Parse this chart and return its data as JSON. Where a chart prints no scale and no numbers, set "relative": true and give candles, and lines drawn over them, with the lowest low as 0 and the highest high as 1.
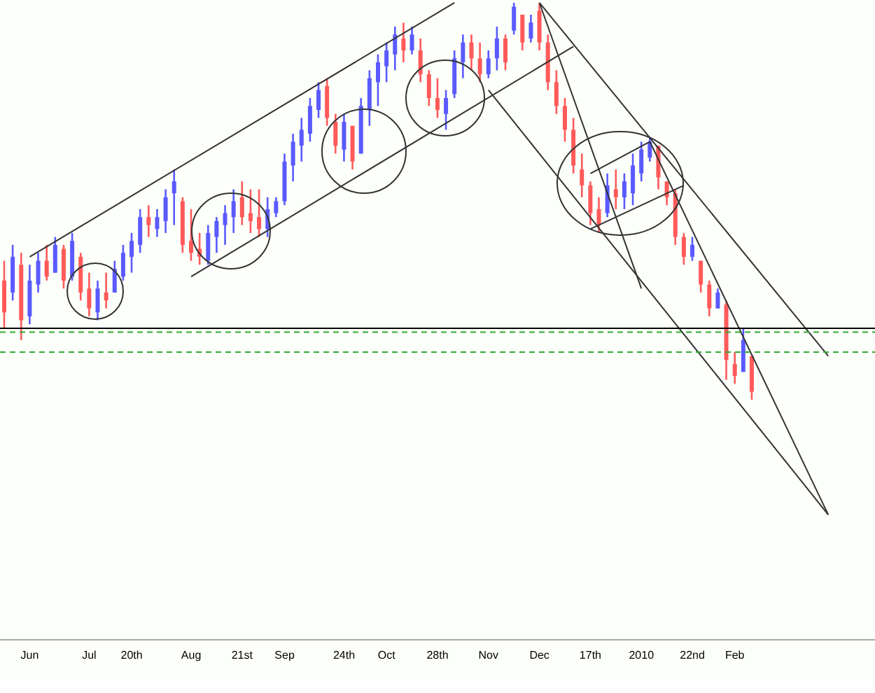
{
  "chart_data": {
    "type": "candlestick",
    "relative": true,
    "categories": [
      null,
      null,
      null,
      "Jun",
      null,
      null,
      null,
      null,
      null,
      null,
      "Jul",
      null,
      null,
      null,
      null,
      "20th",
      null,
      null,
      null,
      null,
      null,
      null,
      "Aug",
      null,
      null,
      null,
      null,
      null,
      "21st",
      null,
      null,
      null,
      null,
      "Sep",
      null,
      null,
      null,
      null,
      null,
      null,
      "24th",
      null,
      null,
      null,
      null,
      "Oct",
      null,
      null,
      null,
      null,
      null,
      "28th",
      null,
      null,
      null,
      null,
      null,
      "Nov",
      null,
      null,
      null,
      null,
      null,
      "Dec",
      null,
      null,
      null,
      null,
      null,
      "17th",
      null,
      null,
      null,
      null,
      null,
      "2010",
      null,
      null,
      null,
      null,
      null,
      "22nd",
      null,
      null,
      null,
      null,
      "Feb",
      null,
      null,
      null,
      null,
      null,
      null,
      null,
      null,
      null,
      null,
      null,
      null,
      null,
      null,
      null,
      null
    ],
    "ohlc": [
      [
        0.3,
        0.35,
        0.18,
        0.22
      ],
      [
        0.27,
        0.39,
        0.25,
        0.36
      ],
      [
        0.34,
        0.37,
        0.15,
        0.2
      ],
      [
        0.21,
        0.34,
        0.19,
        0.3
      ],
      [
        0.29,
        0.37,
        0.27,
        0.35
      ],
      [
        0.35,
        0.39,
        0.3,
        0.31
      ],
      [
        0.32,
        0.41,
        0.32,
        0.39
      ],
      [
        0.38,
        0.39,
        0.28,
        0.3
      ],
      [
        0.31,
        0.42,
        0.3,
        0.4
      ],
      [
        0.36,
        0.37,
        0.25,
        0.27
      ],
      [
        0.28,
        0.32,
        0.21,
        0.23
      ],
      [
        0.22,
        0.3,
        0.2,
        0.28
      ],
      [
        0.27,
        0.32,
        0.23,
        0.25
      ],
      [
        0.27,
        0.35,
        0.27,
        0.33
      ],
      [
        0.31,
        0.39,
        0.3,
        0.37
      ],
      [
        0.36,
        0.42,
        0.32,
        0.4
      ],
      [
        0.39,
        0.48,
        0.37,
        0.46
      ],
      [
        0.46,
        0.49,
        0.41,
        0.44
      ],
      [
        0.43,
        0.48,
        0.41,
        0.46
      ],
      [
        0.45,
        0.53,
        0.42,
        0.51
      ],
      [
        0.52,
        0.58,
        0.44,
        0.55
      ],
      [
        0.5,
        0.51,
        0.37,
        0.39
      ],
      [
        0.4,
        0.48,
        0.35,
        0.37
      ],
      [
        0.38,
        0.42,
        0.34,
        0.36
      ],
      [
        0.35,
        0.44,
        0.34,
        0.42
      ],
      [
        0.41,
        0.46,
        0.37,
        0.45
      ],
      [
        0.44,
        0.49,
        0.39,
        0.47
      ],
      [
        0.46,
        0.53,
        0.42,
        0.5
      ],
      [
        0.51,
        0.55,
        0.44,
        0.46
      ],
      [
        0.47,
        0.53,
        0.42,
        0.45
      ],
      [
        0.46,
        0.53,
        0.41,
        0.43
      ],
      [
        0.43,
        0.51,
        0.41,
        0.48
      ],
      [
        0.47,
        0.51,
        0.46,
        0.5
      ],
      [
        0.5,
        0.62,
        0.49,
        0.6
      ],
      [
        0.59,
        0.67,
        0.55,
        0.65
      ],
      [
        0.64,
        0.71,
        0.6,
        0.68
      ],
      [
        0.67,
        0.76,
        0.65,
        0.74
      ],
      [
        0.73,
        0.8,
        0.71,
        0.78
      ],
      [
        0.79,
        0.81,
        0.69,
        0.71
      ],
      [
        0.7,
        0.72,
        0.62,
        0.64
      ],
      [
        0.63,
        0.72,
        0.6,
        0.7
      ],
      [
        0.69,
        0.69,
        0.58,
        0.6
      ],
      [
        0.62,
        0.76,
        0.62,
        0.74
      ],
      [
        0.73,
        0.83,
        0.69,
        0.81
      ],
      [
        0.8,
        0.87,
        0.74,
        0.85
      ],
      [
        0.84,
        0.9,
        0.8,
        0.88
      ],
      [
        0.87,
        0.94,
        0.83,
        0.92
      ],
      [
        0.91,
        0.95,
        0.85,
        0.88
      ],
      [
        0.88,
        0.94,
        0.87,
        0.92
      ],
      [
        0.88,
        0.91,
        0.8,
        0.82
      ],
      [
        0.82,
        0.83,
        0.74,
        0.76
      ],
      [
        0.76,
        0.81,
        0.71,
        0.73
      ],
      [
        0.72,
        0.78,
        0.68,
        0.76
      ],
      [
        0.77,
        0.88,
        0.76,
        0.86
      ],
      [
        0.85,
        0.92,
        0.81,
        0.9
      ],
      [
        0.9,
        0.92,
        0.83,
        0.86
      ],
      [
        0.86,
        0.9,
        0.8,
        0.82
      ],
      [
        0.82,
        0.88,
        0.81,
        0.86
      ],
      [
        0.86,
        0.94,
        0.83,
        0.91
      ],
      [
        0.91,
        0.92,
        0.83,
        0.85
      ],
      [
        0.93,
        1.0,
        0.92,
        0.99
      ],
      [
        0.97,
        0.97,
        0.88,
        0.9
      ],
      [
        0.91,
        0.97,
        0.9,
        0.95
      ],
      [
        0.98,
        1.0,
        0.88,
        0.9
      ],
      [
        0.9,
        0.92,
        0.78,
        0.8
      ],
      [
        0.8,
        0.83,
        0.72,
        0.74
      ],
      [
        0.74,
        0.76,
        0.65,
        0.68
      ],
      [
        0.68,
        0.71,
        0.57,
        0.59
      ],
      [
        0.58,
        0.62,
        0.51,
        0.54
      ],
      [
        0.54,
        0.55,
        0.44,
        0.47
      ],
      [
        0.48,
        0.51,
        0.42,
        0.44
      ],
      [
        0.47,
        0.57,
        0.46,
        0.54
      ],
      [
        0.53,
        0.58,
        0.48,
        0.51
      ],
      [
        0.51,
        0.57,
        0.48,
        0.55
      ],
      [
        0.52,
        0.62,
        0.49,
        0.59
      ],
      [
        0.57,
        0.65,
        0.55,
        0.63
      ],
      [
        0.61,
        0.66,
        0.6,
        0.65
      ],
      [
        0.64,
        0.64,
        0.53,
        0.56
      ],
      [
        0.55,
        0.55,
        0.49,
        0.51
      ],
      [
        0.52,
        0.53,
        0.39,
        0.41
      ],
      [
        0.41,
        0.42,
        0.34,
        0.36
      ],
      [
        0.36,
        0.41,
        0.35,
        0.39
      ],
      [
        0.35,
        0.35,
        0.27,
        0.29
      ],
      [
        0.29,
        0.3,
        0.21,
        0.23
      ],
      [
        0.23,
        0.28,
        0.23,
        0.27
      ],
      [
        0.24,
        0.25,
        0.05,
        0.1
      ],
      [
        0.09,
        0.12,
        0.04,
        0.06
      ],
      [
        0.07,
        0.18,
        0.07,
        0.15
      ],
      [
        0.11,
        0.11,
        0.0,
        0.02
      ],
      null,
      null,
      null,
      null,
      null,
      null,
      null,
      null,
      null,
      null,
      null,
      null,
      null,
      null
    ],
    "colors": [
      "#ff5a5a",
      "#5a5aff",
      "#ff5a5a",
      "#5a5aff",
      "#5a5aff",
      "#ff5a5a",
      "#5a5aff",
      "#ff5a5a",
      "#5a5aff",
      "#ff5a5a",
      "#ff5a5a",
      "#5a5aff",
      "#ff5a5a",
      "#5a5aff",
      "#5a5aff",
      "#5a5aff",
      "#5a5aff",
      "#ff5a5a",
      "#5a5aff",
      "#5a5aff",
      "#5a5aff",
      "#ff5a5a",
      "#ff5a5a",
      "#ff5a5a",
      "#5a5aff",
      "#5a5aff",
      "#5a5aff",
      "#5a5aff",
      "#ff5a5a",
      "#ff5a5a",
      "#ff5a5a",
      "#5a5aff",
      "#5a5aff",
      "#5a5aff",
      "#5a5aff",
      "#5a5aff",
      "#5a5aff",
      "#5a5aff",
      "#ff5a5a",
      "#ff5a5a",
      "#5a5aff",
      "#ff5a5a",
      "#5a5aff",
      "#5a5aff",
      "#5a5aff",
      "#5a5aff",
      "#5a5aff",
      "#ff5a5a",
      "#5a5aff",
      "#ff5a5a",
      "#ff5a5a",
      "#ff5a5a",
      "#5a5aff",
      "#5a5aff",
      "#5a5aff",
      "#ff5a5a",
      "#ff5a5a",
      "#5a5aff",
      "#5a5aff",
      "#ff5a5a",
      "#5a5aff",
      "#ff5a5a",
      "#5a5aff",
      "#ff5a5a",
      "#ff5a5a",
      "#ff5a5a",
      "#ff5a5a",
      "#ff5a5a",
      "#ff5a5a",
      "#ff5a5a",
      "#ff5a5a",
      "#5a5aff",
      "#ff5a5a",
      "#5a5aff",
      "#5a5aff",
      "#5a5aff",
      "#5a5aff",
      "#ff5a5a",
      "#ff5a5a",
      "#ff5a5a",
      "#ff5a5a",
      "#5a5aff",
      "#ff5a5a",
      "#ff5a5a",
      "#5a5aff",
      "#ff5a5a",
      "#ff5a5a",
      "#5a5aff",
      "#ff5a5a",
      null,
      null,
      null,
      null,
      null,
      null,
      null,
      null,
      null,
      null,
      null,
      null,
      null,
      null
    ],
    "series": [
      {
        "type": "line",
        "color": "#333333",
        "values": [
          null,
          null,
          null,
          0.36,
          null,
          null,
          null,
          null,
          null,
          null,
          null,
          null,
          null,
          null,
          null,
          null,
          null,
          null,
          null,
          null,
          null,
          null,
          null,
          null,
          null,
          null,
          null,
          null,
          null,
          null,
          null,
          null,
          null,
          null,
          null,
          null,
          null,
          null,
          null,
          null,
          null,
          null,
          null,
          null,
          null,
          null,
          null,
          null,
          null,
          null,
          null,
          null,
          null,
          1.0,
          null,
          null,
          null,
          null,
          null,
          null,
          null,
          null,
          null,
          null,
          null,
          null,
          null,
          null,
          null,
          null,
          null,
          null,
          null,
          null,
          null,
          null,
          null,
          null,
          null,
          null,
          null,
          null,
          null,
          null,
          null,
          null,
          null,
          null,
          null,
          null,
          null,
          null,
          null,
          null,
          null,
          null,
          null,
          null,
          null,
          null,
          null,
          null,
          null
        ]
      },
      {
        "type": "line",
        "color": "#333333",
        "values": [
          null,
          null,
          null,
          null,
          null,
          null,
          null,
          null,
          null,
          null,
          null,
          null,
          null,
          null,
          null,
          null,
          null,
          null,
          null,
          null,
          null,
          null,
          0.31,
          null,
          null,
          null,
          null,
          null,
          null,
          null,
          null,
          null,
          null,
          null,
          null,
          null,
          null,
          null,
          null,
          null,
          null,
          null,
          null,
          null,
          null,
          null,
          null,
          null,
          null,
          null,
          null,
          null,
          null,
          null,
          null,
          null,
          null,
          null,
          null,
          null,
          null,
          null,
          null,
          null,
          null,
          null,
          null,
          0.89,
          null,
          null,
          null,
          null,
          null,
          null,
          null,
          null,
          null,
          null,
          null,
          null,
          null,
          null,
          null,
          null,
          null,
          null,
          null,
          null,
          null,
          null,
          null,
          null,
          null,
          null,
          null,
          null,
          null,
          null,
          null,
          null,
          null,
          null,
          null
        ]
      },
      {
        "type": "line",
        "color": "#333333",
        "values": [
          null,
          null,
          null,
          null,
          null,
          null,
          null,
          null,
          null,
          null,
          null,
          null,
          null,
          null,
          null,
          null,
          null,
          null,
          null,
          null,
          null,
          null,
          null,
          null,
          null,
          null,
          null,
          null,
          null,
          null,
          null,
          null,
          null,
          null,
          null,
          null,
          null,
          null,
          null,
          null,
          null,
          null,
          null,
          null,
          null,
          null,
          null,
          null,
          null,
          null,
          null,
          null,
          null,
          null,
          null,
          null,
          null,
          null,
          null,
          null,
          null,
          null,
          null,
          1.0,
          null,
          null,
          null,
          null,
          null,
          null,
          null,
          null,
          null,
          null,
          null,
          null,
          null,
          null,
          null,
          null,
          null,
          null,
          null,
          null,
          null,
          null,
          null,
          null,
          null,
          null,
          null,
          null,
          null,
          null,
          null,
          null,
          null,
          0.11,
          null,
          null,
          null,
          null,
          null
        ]
      },
      {
        "type": "line",
        "color": "#333333",
        "values": [
          null,
          null,
          null,
          null,
          null,
          null,
          null,
          null,
          null,
          null,
          null,
          null,
          null,
          null,
          null,
          null,
          null,
          null,
          null,
          null,
          null,
          null,
          null,
          null,
          null,
          null,
          null,
          null,
          null,
          null,
          null,
          null,
          null,
          null,
          null,
          null,
          null,
          null,
          null,
          null,
          null,
          null,
          null,
          null,
          null,
          null,
          null,
          null,
          null,
          null,
          null,
          null,
          null,
          null,
          null,
          null,
          null,
          0.78,
          null,
          null,
          null,
          null,
          null,
          null,
          null,
          null,
          null,
          null,
          null,
          null,
          null,
          null,
          null,
          null,
          null,
          null,
          null,
          null,
          null,
          null,
          null,
          null,
          null,
          null,
          null,
          null,
          null,
          null,
          null,
          null,
          null,
          null,
          null,
          null,
          null,
          null,
          null,
          -0.29,
          null,
          null,
          null,
          null,
          null
        ]
      },
      {
        "type": "line",
        "color": "#333333",
        "values": [
          null,
          null,
          null,
          null,
          null,
          null,
          null,
          null,
          null,
          null,
          null,
          null,
          null,
          null,
          null,
          null,
          null,
          null,
          null,
          null,
          null,
          null,
          null,
          null,
          null,
          null,
          null,
          null,
          null,
          null,
          null,
          null,
          null,
          null,
          null,
          null,
          null,
          null,
          null,
          null,
          null,
          null,
          null,
          null,
          null,
          null,
          null,
          null,
          null,
          null,
          null,
          null,
          null,
          null,
          null,
          null,
          null,
          null,
          null,
          null,
          null,
          null,
          null,
          1.0,
          null,
          null,
          null,
          null,
          null,
          null,
          null,
          null,
          null,
          null,
          null,
          0.28,
          null,
          null,
          null,
          null,
          null,
          null,
          null,
          null,
          null,
          null,
          null,
          null,
          null,
          null,
          null,
          null,
          null,
          null,
          null,
          null,
          null,
          null,
          null,
          null,
          null,
          null,
          null
        ]
      },
      {
        "type": "line",
        "color": "#333333",
        "values": [
          null,
          null,
          null,
          null,
          null,
          null,
          null,
          null,
          null,
          null,
          null,
          null,
          null,
          null,
          null,
          null,
          null,
          null,
          null,
          null,
          null,
          null,
          null,
          null,
          null,
          null,
          null,
          null,
          null,
          null,
          null,
          null,
          null,
          null,
          null,
          null,
          null,
          null,
          null,
          null,
          null,
          null,
          null,
          null,
          null,
          null,
          null,
          null,
          null,
          null,
          null,
          null,
          null,
          null,
          null,
          null,
          null,
          null,
          null,
          null,
          null,
          null,
          null,
          null,
          null,
          null,
          null,
          null,
          null,
          null,
          null,
          null,
          null,
          null,
          null,
          null,
          0.65,
          null,
          null,
          null,
          null,
          null,
          null,
          null,
          null,
          null,
          null,
          null,
          null,
          null,
          null,
          null,
          null,
          null,
          null,
          null,
          null,
          -0.29,
          null,
          null,
          null,
          null,
          null
        ]
      },
      {
        "type": "line",
        "color": "#333333",
        "values": [
          null,
          null,
          null,
          null,
          null,
          null,
          null,
          null,
          null,
          null,
          null,
          null,
          null,
          null,
          null,
          null,
          null,
          null,
          null,
          null,
          null,
          null,
          null,
          null,
          null,
          null,
          null,
          null,
          null,
          null,
          null,
          null,
          null,
          null,
          null,
          null,
          null,
          null,
          null,
          null,
          null,
          null,
          null,
          null,
          null,
          null,
          null,
          null,
          null,
          null,
          null,
          null,
          null,
          null,
          null,
          null,
          null,
          null,
          null,
          null,
          null,
          null,
          null,
          null,
          null,
          null,
          null,
          null,
          null,
          0.57,
          null,
          null,
          null,
          null,
          null,
          null,
          0.65,
          null,
          null,
          null,
          null,
          null,
          null,
          null,
          null,
          null,
          null,
          null,
          null,
          null,
          null,
          null,
          null,
          null,
          null,
          null,
          null,
          null,
          null,
          null,
          null,
          null,
          null
        ]
      },
      {
        "type": "line",
        "color": "#333333",
        "values": [
          null,
          null,
          null,
          null,
          null,
          null,
          null,
          null,
          null,
          null,
          null,
          null,
          null,
          null,
          null,
          null,
          null,
          null,
          null,
          null,
          null,
          null,
          null,
          null,
          null,
          null,
          null,
          null,
          null,
          null,
          null,
          null,
          null,
          null,
          null,
          null,
          null,
          null,
          null,
          null,
          null,
          null,
          null,
          null,
          null,
          null,
          null,
          null,
          null,
          null,
          null,
          null,
          null,
          null,
          null,
          null,
          null,
          null,
          null,
          null,
          null,
          null,
          null,
          null,
          null,
          null,
          null,
          null,
          null,
          0.43,
          null,
          null,
          null,
          null,
          null,
          null,
          null,
          null,
          null,
          null,
          0.54,
          null,
          null,
          null,
          null,
          null,
          null,
          null,
          null,
          null,
          null,
          null,
          null,
          null,
          null,
          null,
          null,
          null,
          null,
          null,
          null,
          null,
          null
        ]
      }
    ],
    "ref_lines": [
      {
        "axis": "y",
        "value": 0.18,
        "color": "#000000",
        "line_style": "solid"
      },
      {
        "axis": "y",
        "value": 0.17,
        "color": "#33aa33",
        "line_style": "dashed"
      },
      {
        "axis": "y",
        "value": 0.12,
        "color": "#33aa33",
        "line_style": "dashed"
      }
    ]
  }
}
